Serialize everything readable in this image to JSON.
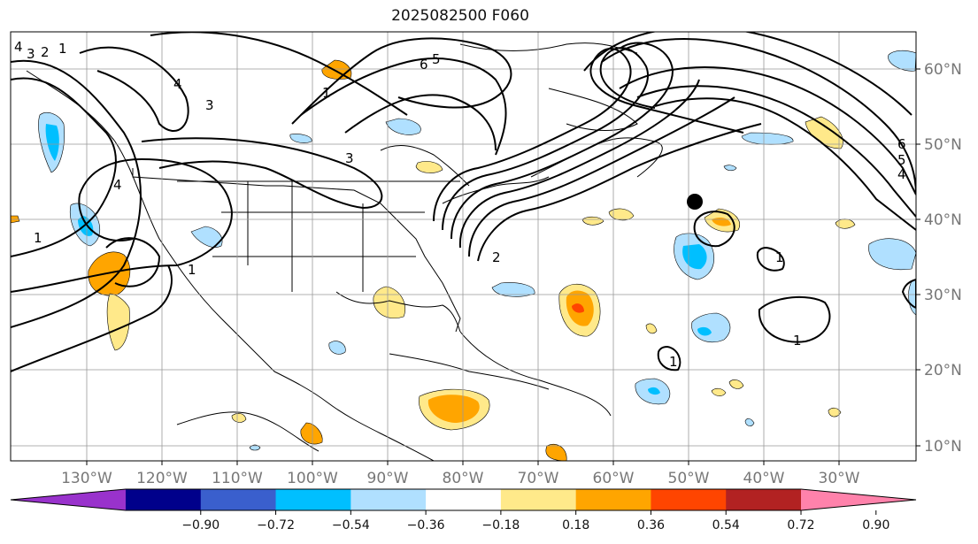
{
  "title": "2025082500 F060",
  "map": {
    "lon_labels": [
      "130°W",
      "120°W",
      "110°W",
      "100°W",
      "90°W",
      "80°W",
      "70°W",
      "60°W",
      "50°W",
      "40°W",
      "30°W"
    ],
    "lat_labels": [
      "60°N",
      "50°N",
      "40°N",
      "30°N",
      "20°N",
      "10°N"
    ],
    "contour_labels": [
      "4",
      "3",
      "2",
      "1",
      "6",
      "5",
      "4",
      "3",
      "1",
      "3",
      "2",
      "4",
      "1",
      "6",
      "5",
      "4",
      "1",
      "1",
      "1",
      "1"
    ],
    "grid": true,
    "marker": "black-dot"
  },
  "colorbar": {
    "ticks": [
      "−0.90",
      "−0.72",
      "−0.54",
      "−0.36",
      "−0.18",
      "0.18",
      "0.36",
      "0.54",
      "0.72",
      "0.90"
    ],
    "colors": [
      "#9932cc",
      "#00008b",
      "#3a5fcd",
      "#00bfff",
      "#b0e0ff",
      "#ffffff",
      "#ffe98a",
      "#ffa500",
      "#ff4500",
      "#b22222",
      "#ff82ab"
    ],
    "extend": "both"
  }
}
